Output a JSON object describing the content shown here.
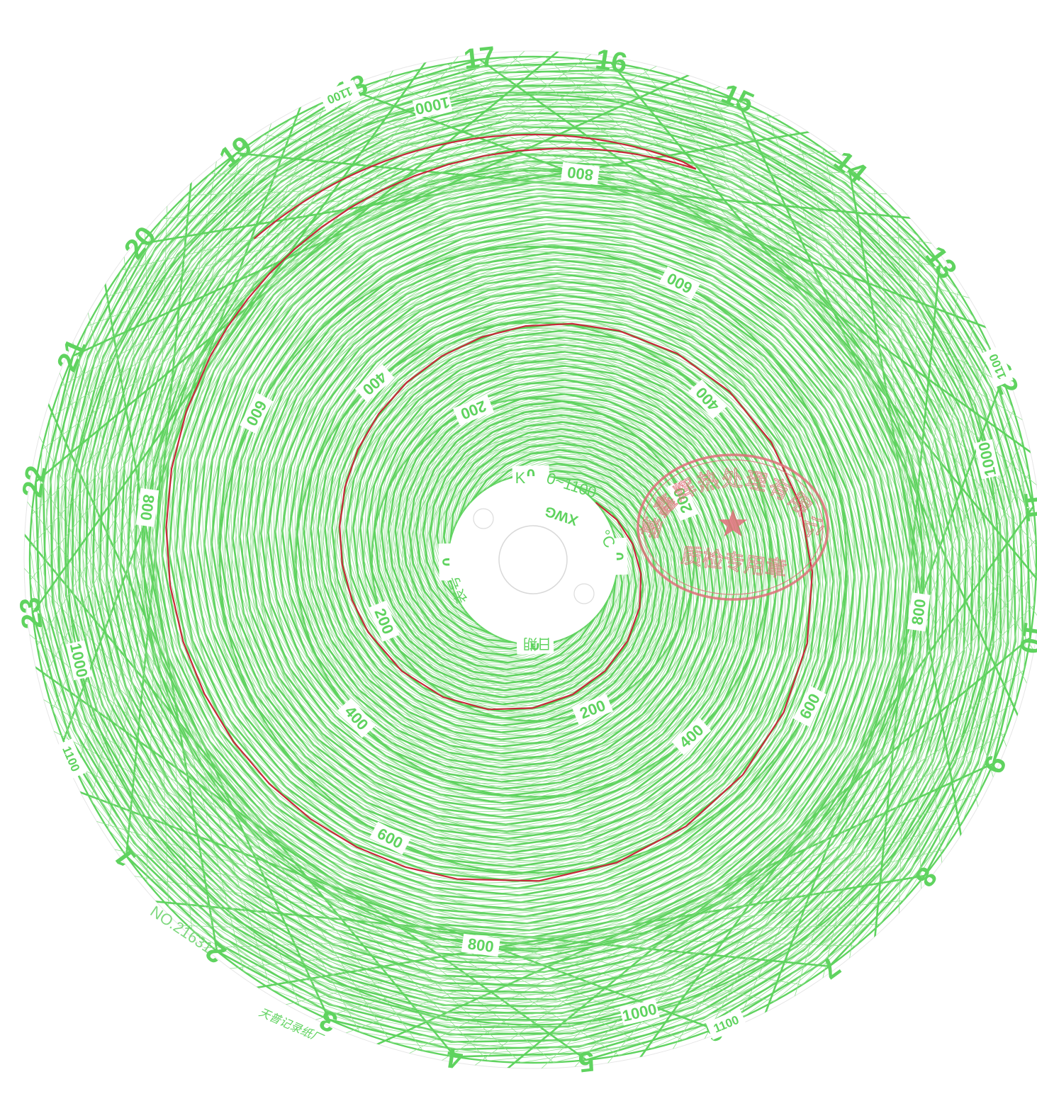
{
  "chart_data": {
    "type": "circular-recorder-chart",
    "center_text": {
      "thermocouple": "K",
      "range": "0~1100",
      "unit": "°C",
      "model": "XWG",
      "meter_no_label": "表号",
      "date_label": "日期"
    },
    "scale": {
      "min": 0,
      "max": 1100,
      "major_step": 200,
      "minor_step": 20,
      "ring_labels": [
        "0",
        "200",
        "400",
        "600",
        "800",
        "1000",
        "1100"
      ]
    },
    "time_axis": {
      "unit": "hour",
      "hour_labels": [
        "1",
        "2",
        "3",
        "4",
        "5",
        "6",
        "7",
        "8",
        "9",
        "10",
        "11",
        "12",
        "13",
        "14",
        "15",
        "16",
        "17",
        "18",
        "19",
        "20",
        "21",
        "22",
        "23"
      ]
    },
    "series": [
      {
        "color": "#c8283a",
        "points": [
          {
            "hour": 2.8,
            "temp": 0
          },
          {
            "hour": 2.9,
            "temp": 250
          },
          {
            "hour": 3.0,
            "temp": 420
          },
          {
            "hour": 3.2,
            "temp": 640
          },
          {
            "hour": 3.4,
            "temp": 780
          },
          {
            "hour": 3.6,
            "temp": 860
          },
          {
            "hour": 3.9,
            "temp": 890
          },
          {
            "hour": 4.3,
            "temp": 895
          },
          {
            "hour": 4.8,
            "temp": 895
          },
          {
            "hour": 5.4,
            "temp": 895
          },
          {
            "hour": 6.0,
            "temp": 895
          },
          {
            "hour": 6.6,
            "temp": 895
          },
          {
            "hour": 7.2,
            "temp": 895
          },
          {
            "hour": 7.8,
            "temp": 895
          },
          {
            "hour": 8.4,
            "temp": 895
          }
        ]
      }
    ]
  },
  "serial_number": "NO.21631",
  "manufacturer": "天普记录纸厂",
  "stamp": {
    "top_text": "永基鑫辉热处理有限公司",
    "bottom_text": "质检专用章",
    "color": "#e0707a"
  },
  "colors": {
    "grid": "#5fd35f",
    "grid_minor": "#8fe08f",
    "trace": "#c8283a"
  }
}
